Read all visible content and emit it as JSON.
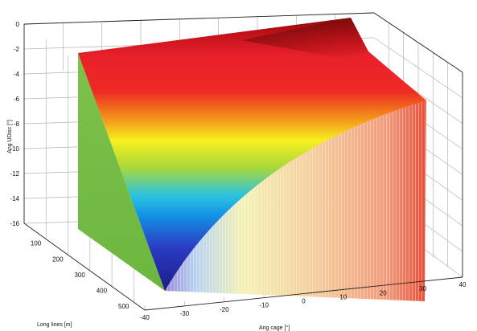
{
  "chart_data": {
    "type": "surface3d",
    "title": "",
    "xlabel": "Long lines [m]",
    "ylabel": "Ang cage [°]",
    "zlabel": "Ang UDisc [°]",
    "x_ticks": [
      100,
      200,
      300,
      400,
      500
    ],
    "y_ticks": [
      -40,
      -30,
      -20,
      -10,
      0,
      10,
      20,
      30,
      40
    ],
    "z_ticks": [
      0,
      -2,
      -4,
      -6,
      -8,
      -10,
      -12,
      -14,
      -16
    ],
    "xlim": [
      0,
      550
    ],
    "ylim": [
      -40,
      40
    ],
    "zlim": [
      -16,
      0
    ],
    "grid": true,
    "colormap": "jet",
    "surface_description_points": [
      {
        "x": 50,
        "y": -40,
        "z": -2.5
      },
      {
        "x": 50,
        "y": 40,
        "z": -0.5
      },
      {
        "x": 550,
        "y": 40,
        "z": -6.0
      },
      {
        "x": 550,
        "y": -35,
        "z": -16.0
      }
    ]
  }
}
